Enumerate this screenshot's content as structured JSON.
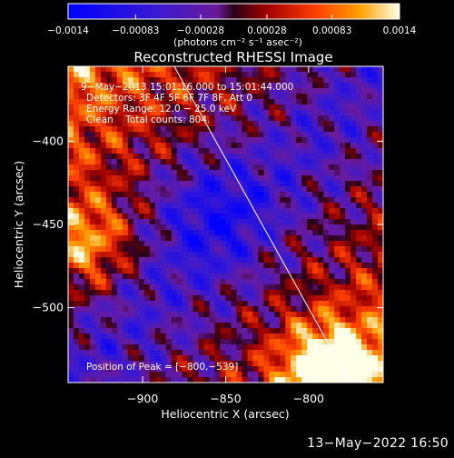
{
  "chart_data": {
    "type": "heatmap",
    "title": "Reconstructed RHESSI Image",
    "xlabel": "Heliocentric X (arcsec)",
    "ylabel": "Heliocentric Y (arcsec)",
    "xlim": [
      -945,
      -755
    ],
    "ylim": [
      -545,
      -355
    ],
    "x_ticks": [
      -900,
      -850,
      -800
    ],
    "x_tick_labels": [
      "−900",
      "−850",
      "−800"
    ],
    "y_ticks": [
      -400,
      -450,
      -500
    ],
    "y_tick_labels": [
      "−400",
      "−450",
      "−500"
    ],
    "colorbar": {
      "range": [
        -0.0014,
        0.0014
      ],
      "ticks": [
        -0.0014,
        -0.00083,
        -0.00028,
        0.00028,
        0.00083,
        0.0014
      ],
      "tick_labels": [
        "−0.0014",
        "−0.00083",
        "−0.00028",
        "0.00028",
        "0.00083",
        "0.0014"
      ],
      "unit_label": "(photons cm⁻² s⁻¹ asec⁻²)"
    },
    "annotations": [
      "9−May−2013 15:01:16.000 to 15:01:44.000",
      "Detectors: 3F 4F 5F 6F 7F 8F, Att 0",
      "Energy Range: 12.0 − 25.0 keV",
      "Clean    Total counts: 804."
    ],
    "peak_label": "Position of Peak = [−800,−539]",
    "peak_position": [
      -800,
      -539
    ],
    "limb_line": [
      [
        -881,
        -355
      ],
      [
        -775,
        -545
      ]
    ],
    "grid": false
  },
  "footer_timestamp": "13−May−2022 16:50"
}
